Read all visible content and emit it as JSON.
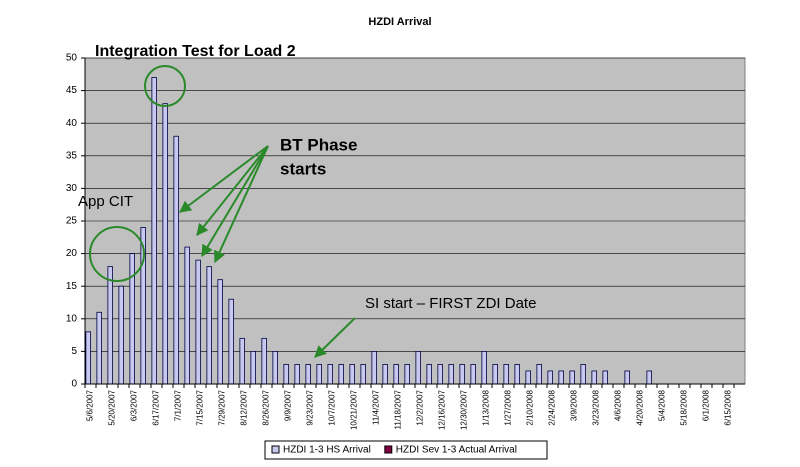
{
  "chart_data": {
    "type": "bar",
    "title": "HZDI Arrival",
    "annotations": [
      "Integration Test for Load 2",
      "App CIT",
      "BT Phase",
      "starts",
      "SI start – FIRST ZDI Date"
    ],
    "categories": [
      "5/6/2007",
      null,
      "5/20/2007",
      null,
      "6/3/2007",
      null,
      "6/17/2007",
      null,
      "7/1/2007",
      null,
      "7/15/2007",
      null,
      "7/29/2007",
      null,
      "8/12/2007",
      null,
      "8/26/2007",
      null,
      "9/9/2007",
      null,
      "9/23/2007",
      null,
      "10/7/2007",
      null,
      "10/21/2007",
      null,
      "11/4/2007",
      null,
      "11/18/2007",
      null,
      "12/2/2007",
      null,
      "12/16/2007",
      null,
      "12/30/2007",
      null,
      "1/13/2008",
      null,
      "1/27/2008",
      null,
      "2/10/2008",
      null,
      "2/24/2008",
      null,
      "3/9/2008",
      null,
      "3/23/2008",
      null,
      "4/6/2008",
      null,
      "4/20/2008",
      null,
      "5/4/2008",
      null,
      "5/18/2008",
      null,
      "6/1/2008",
      null,
      "6/15/2008",
      null
    ],
    "series": [
      {
        "name": "HZDI 1-3 HS Arrival",
        "color": "#c8c8f0",
        "values": [
          8,
          11,
          18,
          15,
          20,
          24,
          47,
          43,
          38,
          21,
          19,
          18,
          16,
          13,
          7,
          5,
          7,
          5,
          3,
          3,
          3,
          3,
          3,
          3,
          3,
          3,
          5,
          3,
          3,
          3,
          5,
          3,
          3,
          3,
          3,
          3,
          5,
          3,
          3,
          3,
          2,
          3,
          2,
          2,
          2,
          3,
          2,
          2,
          0,
          2,
          0,
          2,
          0,
          0,
          0,
          0,
          0,
          0,
          0,
          0
        ]
      },
      {
        "name": "HZDI Sev 1-3 Actual Arrival",
        "color": "#800040",
        "values": [
          0,
          0,
          0,
          0,
          0,
          0,
          0,
          0,
          0,
          0,
          0,
          0,
          0,
          0,
          0,
          0,
          0,
          0,
          0,
          0,
          0,
          0,
          0,
          0,
          0,
          0,
          0,
          0,
          0,
          0,
          0,
          0,
          0,
          0,
          0,
          0,
          0,
          0,
          0,
          0,
          0,
          0,
          0,
          0,
          0,
          0,
          0,
          0,
          0,
          0,
          0,
          0,
          0,
          0,
          0,
          0,
          0,
          0,
          0,
          0
        ]
      }
    ],
    "ylim": [
      0,
      50
    ],
    "yticks": [
      0,
      5,
      10,
      15,
      20,
      25,
      30,
      35,
      40,
      45,
      50
    ],
    "grid": true
  }
}
